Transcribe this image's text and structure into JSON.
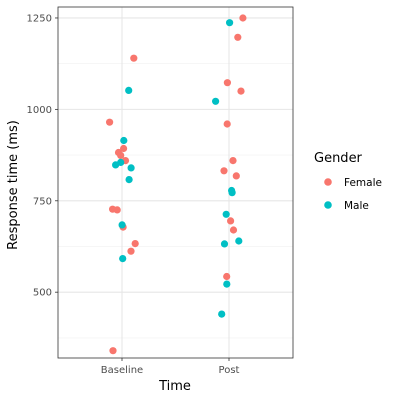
{
  "chart_data": {
    "type": "scatter",
    "title": "",
    "xlabel": "Time",
    "ylabel": "Response time (ms)",
    "categories": [
      "Baseline",
      "Post"
    ],
    "ylim": [
      320,
      1280
    ],
    "yticks": [
      500,
      750,
      1000,
      1250
    ],
    "grid": true,
    "legend": {
      "title": "Gender",
      "position": "right"
    },
    "series": [
      {
        "name": "Female",
        "color": "#F8766D",
        "points": [
          {
            "x": "Baseline",
            "y": 1140
          },
          {
            "x": "Baseline",
            "y": 965
          },
          {
            "x": "Baseline",
            "y": 893
          },
          {
            "x": "Baseline",
            "y": 882
          },
          {
            "x": "Baseline",
            "y": 874
          },
          {
            "x": "Baseline",
            "y": 860
          },
          {
            "x": "Baseline",
            "y": 727
          },
          {
            "x": "Baseline",
            "y": 725
          },
          {
            "x": "Baseline",
            "y": 678
          },
          {
            "x": "Baseline",
            "y": 633
          },
          {
            "x": "Baseline",
            "y": 612
          },
          {
            "x": "Baseline",
            "y": 340
          },
          {
            "x": "Post",
            "y": 1250
          },
          {
            "x": "Post",
            "y": 1197
          },
          {
            "x": "Post",
            "y": 1073
          },
          {
            "x": "Post",
            "y": 1050
          },
          {
            "x": "Post",
            "y": 960
          },
          {
            "x": "Post",
            "y": 860
          },
          {
            "x": "Post",
            "y": 832
          },
          {
            "x": "Post",
            "y": 818
          },
          {
            "x": "Post",
            "y": 695
          },
          {
            "x": "Post",
            "y": 670
          },
          {
            "x": "Post",
            "y": 543
          }
        ]
      },
      {
        "name": "Male",
        "color": "#00BFC4",
        "points": [
          {
            "x": "Baseline",
            "y": 1052
          },
          {
            "x": "Baseline",
            "y": 915
          },
          {
            "x": "Baseline",
            "y": 855
          },
          {
            "x": "Baseline",
            "y": 848
          },
          {
            "x": "Baseline",
            "y": 840
          },
          {
            "x": "Baseline",
            "y": 808
          },
          {
            "x": "Baseline",
            "y": 684
          },
          {
            "x": "Baseline",
            "y": 592
          },
          {
            "x": "Post",
            "y": 1237
          },
          {
            "x": "Post",
            "y": 1022
          },
          {
            "x": "Post",
            "y": 778
          },
          {
            "x": "Post",
            "y": 772
          },
          {
            "x": "Post",
            "y": 713
          },
          {
            "x": "Post",
            "y": 640
          },
          {
            "x": "Post",
            "y": 632
          },
          {
            "x": "Post",
            "y": 522
          },
          {
            "x": "Post",
            "y": 440
          }
        ]
      }
    ]
  }
}
